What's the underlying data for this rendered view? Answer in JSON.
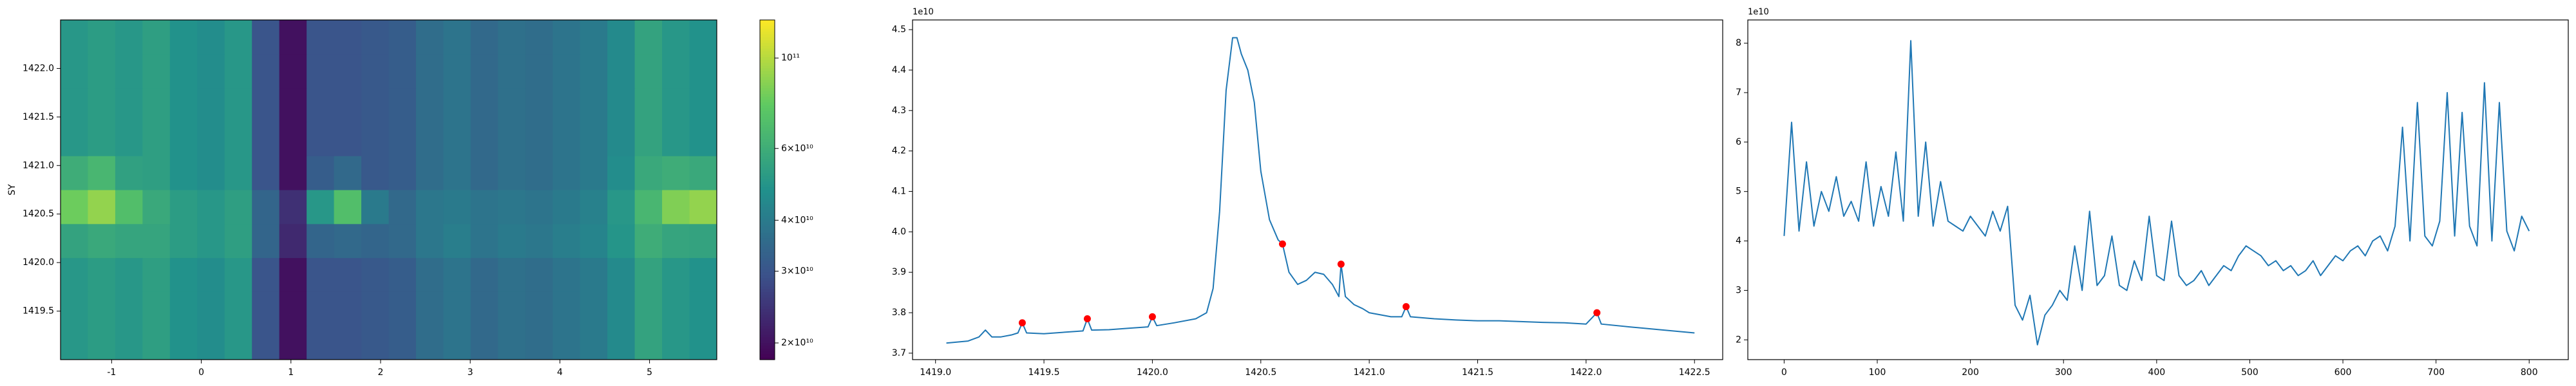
{
  "chart_data": [
    {
      "type": "heatmap",
      "ylabel": "SY",
      "colormap": "viridis",
      "color_scale": "log",
      "xlim": [
        -1.57,
        5.75
      ],
      "ylim": [
        1419.0,
        1422.5
      ],
      "xticks": [
        -1,
        0,
        1,
        2,
        3,
        4,
        5
      ],
      "yticks": [
        1419.5,
        {
          "value": 1420,
          "label": "1420.0"
        },
        1420.5,
        {
          "value": 1421,
          "label": "1421.0"
        },
        1421.5,
        {
          "value": 1422,
          "label": "1422.0"
        }
      ],
      "clim": [
        18200000000.0,
        124000000000.0
      ],
      "cticks": [
        {
          "value": 20000000000.0,
          "label": "2×10¹⁰"
        },
        {
          "value": 30000000000.0,
          "label": "3×10¹⁰"
        },
        {
          "value": 40000000000.0,
          "label": "4×10¹⁰"
        },
        {
          "value": 60000000000.0,
          "label": "6×10¹⁰"
        },
        {
          "value": 100000000000.0,
          "label": "10¹¹"
        }
      ],
      "x_edges": [
        -1.57,
        -1.265,
        -0.96,
        -0.655,
        -0.35,
        -0.045,
        0.26,
        0.565,
        0.87,
        1.175,
        1.48,
        1.785,
        2.09,
        2.395,
        2.7,
        3.005,
        3.31,
        3.615,
        3.92,
        4.225,
        4.53,
        4.835,
        5.14,
        5.445,
        5.75
      ],
      "y_edges": [
        1419.0,
        1419.35,
        1419.7,
        1420.05,
        1420.4,
        1420.75,
        1421.1,
        1421.45,
        1421.8,
        1422.15,
        1422.5
      ],
      "z": [
        [
          50000000000.0,
          52000000000.0,
          50000000000.0,
          53000000000.0,
          48000000000.0,
          46000000000.0,
          50000000000.0,
          30000000000.0,
          20000000000.0,
          30000000000.0,
          30000000000.0,
          31000000000.0,
          32000000000.0,
          36000000000.0,
          38000000000.0,
          35000000000.0,
          37000000000.0,
          36000000000.0,
          38000000000.0,
          40000000000.0,
          45000000000.0,
          55000000000.0,
          50000000000.0,
          48000000000.0
        ],
        [
          50000000000.0,
          52000000000.0,
          50000000000.0,
          53000000000.0,
          48000000000.0,
          46000000000.0,
          50000000000.0,
          30000000000.0,
          20000000000.0,
          30000000000.0,
          30000000000.0,
          31000000000.0,
          32000000000.0,
          36000000000.0,
          38000000000.0,
          35000000000.0,
          37000000000.0,
          36000000000.0,
          38000000000.0,
          40000000000.0,
          45000000000.0,
          55000000000.0,
          50000000000.0,
          48000000000.0
        ],
        [
          50000000000.0,
          52000000000.0,
          50000000000.0,
          53000000000.0,
          48000000000.0,
          46000000000.0,
          50000000000.0,
          30000000000.0,
          20000000000.0,
          30000000000.0,
          30000000000.0,
          31000000000.0,
          32000000000.0,
          36000000000.0,
          38000000000.0,
          35000000000.0,
          37000000000.0,
          36000000000.0,
          38000000000.0,
          40000000000.0,
          45000000000.0,
          55000000000.0,
          50000000000.0,
          48000000000.0
        ],
        [
          55000000000.0,
          58000000000.0,
          56000000000.0,
          56000000000.0,
          52000000000.0,
          50000000000.0,
          53000000000.0,
          34000000000.0,
          23000000000.0,
          34000000000.0,
          35000000000.0,
          34000000000.0,
          35000000000.0,
          39000000000.0,
          41000000000.0,
          38000000000.0,
          40000000000.0,
          39000000000.0,
          41000000000.0,
          43000000000.0,
          49000000000.0,
          60000000000.0,
          56000000000.0,
          55000000000.0
        ],
        [
          80000000000.0,
          90000000000.0,
          70000000000.0,
          58000000000.0,
          52000000000.0,
          50000000000.0,
          53000000000.0,
          34000000000.0,
          24000000000.0,
          50000000000.0,
          70000000000.0,
          40000000000.0,
          35000000000.0,
          39000000000.0,
          40000000000.0,
          38000000000.0,
          39000000000.0,
          38000000000.0,
          40000000000.0,
          42000000000.0,
          50000000000.0,
          65000000000.0,
          85000000000.0,
          90000000000.0
        ],
        [
          60000000000.0,
          65000000000.0,
          54000000000.0,
          53000000000.0,
          48000000000.0,
          46000000000.0,
          50000000000.0,
          30000000000.0,
          20000000000.0,
          32000000000.0,
          35000000000.0,
          31000000000.0,
          32000000000.0,
          36000000000.0,
          38000000000.0,
          35000000000.0,
          37000000000.0,
          36000000000.0,
          38000000000.0,
          40000000000.0,
          46000000000.0,
          58000000000.0,
          60000000000.0,
          58000000000.0
        ],
        [
          50000000000.0,
          52000000000.0,
          50000000000.0,
          53000000000.0,
          48000000000.0,
          46000000000.0,
          50000000000.0,
          30000000000.0,
          20000000000.0,
          30000000000.0,
          30000000000.0,
          31000000000.0,
          32000000000.0,
          36000000000.0,
          38000000000.0,
          35000000000.0,
          37000000000.0,
          36000000000.0,
          38000000000.0,
          40000000000.0,
          45000000000.0,
          55000000000.0,
          50000000000.0,
          48000000000.0
        ],
        [
          50000000000.0,
          52000000000.0,
          50000000000.0,
          53000000000.0,
          48000000000.0,
          46000000000.0,
          50000000000.0,
          30000000000.0,
          20000000000.0,
          30000000000.0,
          30000000000.0,
          31000000000.0,
          32000000000.0,
          36000000000.0,
          38000000000.0,
          35000000000.0,
          37000000000.0,
          36000000000.0,
          38000000000.0,
          40000000000.0,
          45000000000.0,
          55000000000.0,
          50000000000.0,
          48000000000.0
        ],
        [
          50000000000.0,
          52000000000.0,
          50000000000.0,
          53000000000.0,
          48000000000.0,
          46000000000.0,
          50000000000.0,
          30000000000.0,
          20000000000.0,
          30000000000.0,
          30000000000.0,
          31000000000.0,
          32000000000.0,
          36000000000.0,
          38000000000.0,
          35000000000.0,
          37000000000.0,
          36000000000.0,
          38000000000.0,
          40000000000.0,
          45000000000.0,
          55000000000.0,
          50000000000.0,
          48000000000.0
        ],
        [
          50000000000.0,
          52000000000.0,
          50000000000.0,
          53000000000.0,
          48000000000.0,
          46000000000.0,
          50000000000.0,
          30000000000.0,
          20000000000.0,
          30000000000.0,
          30000000000.0,
          31000000000.0,
          32000000000.0,
          36000000000.0,
          38000000000.0,
          35000000000.0,
          37000000000.0,
          36000000000.0,
          38000000000.0,
          40000000000.0,
          45000000000.0,
          55000000000.0,
          50000000000.0,
          48000000000.0
        ]
      ]
    },
    {
      "type": "line",
      "y_offset_label": "1e10",
      "xlim": [
        1418.894,
        1422.63
      ],
      "ylim": [
        3.684,
        4.524
      ],
      "xticks": [
        {
          "value": 1419,
          "label": "1419.0"
        },
        1419.5,
        {
          "value": 1420,
          "label": "1420.0"
        },
        1420.5,
        {
          "value": 1421,
          "label": "1421.0"
        },
        1421.5,
        {
          "value": 1422,
          "label": "1422.0"
        },
        1422.5
      ],
      "yticks": [
        3.7,
        3.8,
        3.9,
        {
          "value": 4,
          "label": "4.0"
        },
        4.1,
        4.2,
        4.3,
        4.4,
        4.5
      ],
      "series": [
        {
          "type": "line",
          "color": "#1f77b4",
          "x": [
            1419.05,
            1419.15,
            1419.2,
            1419.23,
            1419.26,
            1419.3,
            1419.35,
            1419.38,
            1419.4,
            1419.42,
            1419.5,
            1419.6,
            1419.68,
            1419.7,
            1419.72,
            1419.8,
            1419.9,
            1419.98,
            1420.0,
            1420.02,
            1420.1,
            1420.2,
            1420.25,
            1420.28,
            1420.31,
            1420.34,
            1420.37,
            1420.39,
            1420.41,
            1420.44,
            1420.47,
            1420.5,
            1420.54,
            1420.58,
            1420.6,
            1420.63,
            1420.67,
            1420.71,
            1420.75,
            1420.79,
            1420.83,
            1420.86,
            1420.87,
            1420.89,
            1420.93,
            1420.97,
            1421.0,
            1421.05,
            1421.1,
            1421.15,
            1421.17,
            1421.19,
            1421.3,
            1421.4,
            1421.5,
            1421.6,
            1421.7,
            1421.8,
            1421.9,
            1422.0,
            1422.05,
            1422.07,
            1422.2,
            1422.3,
            1422.4,
            1422.5
          ],
          "values": [
            3.725,
            3.73,
            3.74,
            3.757,
            3.74,
            3.74,
            3.745,
            3.75,
            3.775,
            3.75,
            3.748,
            3.752,
            3.755,
            3.785,
            3.757,
            3.758,
            3.762,
            3.765,
            3.79,
            3.768,
            3.775,
            3.785,
            3.8,
            3.86,
            4.05,
            4.35,
            4.48,
            4.48,
            4.44,
            4.4,
            4.32,
            4.15,
            4.03,
            3.98,
            3.97,
            3.9,
            3.87,
            3.88,
            3.9,
            3.895,
            3.87,
            3.84,
            3.92,
            3.84,
            3.82,
            3.81,
            3.8,
            3.795,
            3.79,
            3.79,
            3.815,
            3.79,
            3.785,
            3.782,
            3.78,
            3.78,
            3.778,
            3.776,
            3.775,
            3.772,
            3.8,
            3.772,
            3.765,
            3.76,
            3.755,
            3.75
          ]
        },
        {
          "type": "scatter",
          "color": "#ff0000",
          "x": [
            1419.4,
            1419.7,
            1420.0,
            1420.6,
            1420.87,
            1421.17,
            1422.05
          ],
          "values": [
            3.775,
            3.785,
            3.79,
            3.97,
            3.92,
            3.815,
            3.8
          ]
        }
      ]
    },
    {
      "type": "line",
      "y_offset_label": "1e10",
      "xlim": [
        -39,
        842
      ],
      "ylim": [
        1.6,
        8.47
      ],
      "xticks": [
        0,
        100,
        200,
        300,
        400,
        500,
        600,
        700,
        800
      ],
      "yticks": [
        2,
        3,
        4,
        5,
        6,
        7,
        8
      ],
      "series": [
        {
          "type": "line",
          "color": "#1f77b4",
          "x": [
            0,
            8,
            16,
            24,
            32,
            40,
            48,
            56,
            64,
            72,
            80,
            88,
            96,
            104,
            112,
            120,
            128,
            136,
            144,
            152,
            160,
            168,
            176,
            184,
            192,
            200,
            208,
            216,
            224,
            232,
            240,
            248,
            256,
            264,
            272,
            280,
            288,
            296,
            304,
            312,
            320,
            328,
            336,
            344,
            352,
            360,
            368,
            376,
            384,
            392,
            400,
            408,
            416,
            424,
            432,
            440,
            448,
            456,
            464,
            472,
            480,
            488,
            496,
            504,
            512,
            520,
            528,
            536,
            544,
            552,
            560,
            568,
            576,
            584,
            592,
            600,
            608,
            616,
            624,
            632,
            640,
            648,
            656,
            664,
            672,
            680,
            688,
            696,
            704,
            712,
            720,
            728,
            736,
            744,
            752,
            760,
            768,
            776,
            784,
            792,
            800
          ],
          "values": [
            4.1,
            6.4,
            4.2,
            5.6,
            4.3,
            5.0,
            4.6,
            5.3,
            4.5,
            4.8,
            4.4,
            5.6,
            4.3,
            5.1,
            4.5,
            5.8,
            4.4,
            8.05,
            4.5,
            6.0,
            4.3,
            5.2,
            4.4,
            4.3,
            4.2,
            4.5,
            4.3,
            4.1,
            4.6,
            4.2,
            4.7,
            2.7,
            2.4,
            2.9,
            1.9,
            2.5,
            2.7,
            3.0,
            2.8,
            3.9,
            3.0,
            4.6,
            3.1,
            3.3,
            4.1,
            3.1,
            3.0,
            3.6,
            3.2,
            4.5,
            3.3,
            3.2,
            4.4,
            3.3,
            3.1,
            3.2,
            3.4,
            3.1,
            3.3,
            3.5,
            3.4,
            3.7,
            3.9,
            3.8,
            3.7,
            3.5,
            3.6,
            3.4,
            3.5,
            3.3,
            3.4,
            3.6,
            3.3,
            3.5,
            3.7,
            3.6,
            3.8,
            3.9,
            3.7,
            4.0,
            4.1,
            3.8,
            4.3,
            6.3,
            4.0,
            6.8,
            4.1,
            3.9,
            4.4,
            7.0,
            4.1,
            6.6,
            4.3,
            3.9,
            7.2,
            4.0,
            6.8,
            4.2,
            3.8,
            4.5,
            4.2
          ]
        }
      ]
    }
  ]
}
